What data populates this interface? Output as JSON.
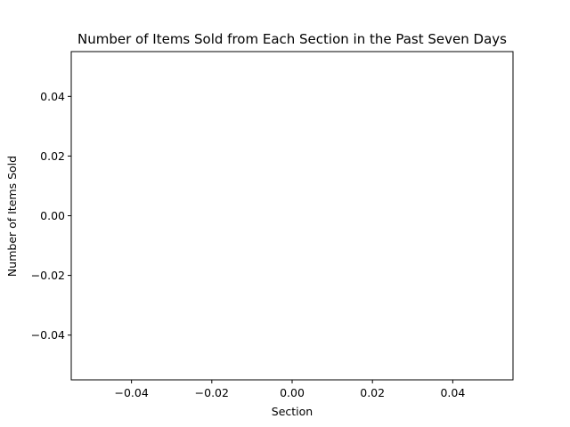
{
  "chart_data": {
    "type": "bar",
    "title": "Number of Items Sold from Each Section in the Past Seven Days",
    "xlabel": "Section",
    "ylabel": "Number of Items Sold",
    "categories": [],
    "values": [],
    "xlim": [
      -0.055,
      0.055
    ],
    "ylim": [
      -0.055,
      0.055
    ],
    "x_ticks": [
      -0.04,
      -0.02,
      0.0,
      0.02,
      0.04
    ],
    "x_tick_labels": [
      "−0.04",
      "−0.02",
      "0.00",
      "0.02",
      "0.04"
    ],
    "y_ticks": [
      -0.04,
      -0.02,
      0.0,
      0.02,
      0.04
    ],
    "y_tick_labels": [
      "−0.04",
      "−0.02",
      "0.00",
      "0.02",
      "0.04"
    ],
    "grid": false,
    "colors": {
      "axis": "#000000",
      "background": "#ffffff"
    }
  }
}
